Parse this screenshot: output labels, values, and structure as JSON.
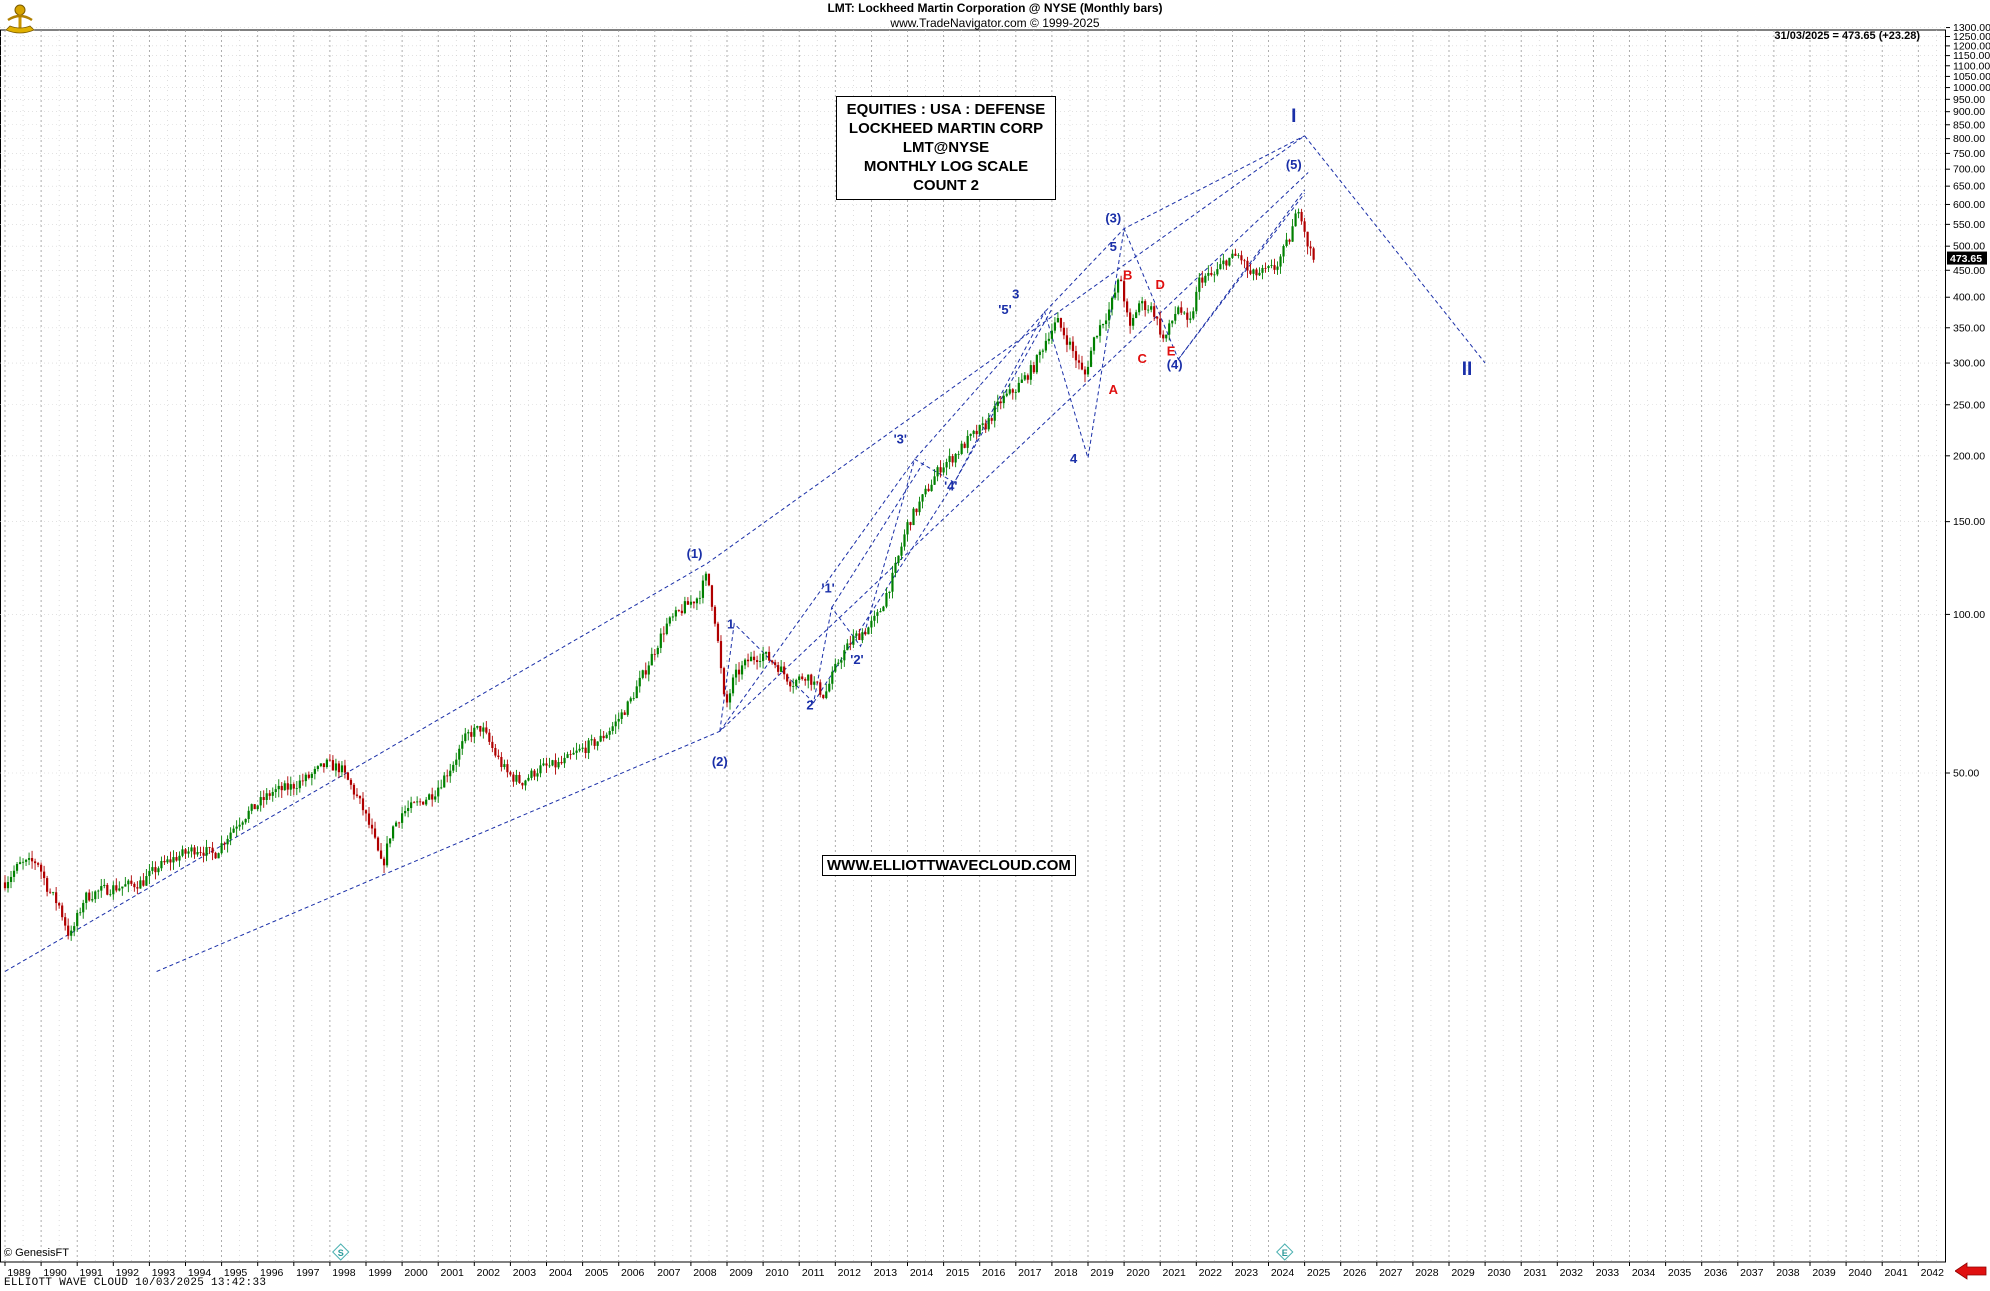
{
  "header": {
    "title": "LMT:  Lockheed Martin Corporation @ NYSE  (Monthly bars)",
    "subtitle": "www.TradeNavigator.com © 1999-2025",
    "last_value": "31/03/2025 = 473.65 (+23.28)",
    "price_tag": "473.65"
  },
  "info_box": {
    "lines": [
      "EQUITIES : USA : DEFENSE",
      "LOCKHEED MARTIN CORP",
      "LMT@NYSE",
      "MONTHLY LOG SCALE",
      "COUNT 2"
    ]
  },
  "website": "WWW.ELLIOTTWAVECLOUD.COM",
  "copyright": "© GenesisFT",
  "footer": "ELLIOTT WAVE CLOUD   10/03/2025 13:42:33",
  "icons": {
    "logo": "trade-navigator-logo-icon",
    "arrow": "left-arrow-icon",
    "cycle_markers": "cycle-marker-icon"
  },
  "colors": {
    "up_candle": "#008000",
    "down_candle": "#b00000",
    "wave_blue": "#1a2fa8",
    "wave_red": "#e01010",
    "grid": "#9a9a9a"
  },
  "chart_data": {
    "type": "candlestick",
    "scale": "log",
    "ylim": [
      22,
      1310
    ],
    "xlim": [
      1989.0,
      2042.4
    ],
    "grid": true,
    "y_ticks": [
      50,
      100,
      150,
      200,
      250,
      300,
      350,
      400,
      450,
      500,
      550,
      600,
      650,
      700,
      750,
      800,
      850,
      900,
      950,
      1000,
      1050,
      1100,
      1150,
      1200,
      1250,
      1300
    ],
    "x_ticks": [
      1989,
      1990,
      1991,
      1992,
      1993,
      1994,
      1995,
      1996,
      1997,
      1998,
      1999,
      2000,
      2001,
      2002,
      2003,
      2004,
      2005,
      2006,
      2007,
      2008,
      2009,
      2010,
      2011,
      2012,
      2013,
      2014,
      2015,
      2016,
      2017,
      2018,
      2019,
      2020,
      2021,
      2022,
      2023,
      2024,
      2025,
      2026,
      2027,
      2028,
      2029,
      2030,
      2031,
      2032,
      2033,
      2034,
      2035,
      2036,
      2037,
      2038,
      2039,
      2040,
      2041,
      2042
    ],
    "price_path": [
      [
        1989.0,
        31
      ],
      [
        1989.4,
        33.5
      ],
      [
        1989.9,
        34
      ],
      [
        1990.2,
        30
      ],
      [
        1990.5,
        28
      ],
      [
        1990.8,
        24.3
      ],
      [
        1991.2,
        29
      ],
      [
        1991.7,
        30
      ],
      [
        1992.3,
        30.5
      ],
      [
        1992.8,
        31
      ],
      [
        1993.2,
        33
      ],
      [
        1993.7,
        34.5
      ],
      [
        1994.3,
        36
      ],
      [
        1994.8,
        35
      ],
      [
        1995.4,
        40
      ],
      [
        1995.9,
        43
      ],
      [
        1996.4,
        46
      ],
      [
        1996.9,
        47
      ],
      [
        1997.4,
        49
      ],
      [
        1997.9,
        52
      ],
      [
        1998.3,
        51
      ],
      [
        1998.6,
        47
      ],
      [
        1998.9,
        43
      ],
      [
        1999.2,
        38
      ],
      [
        1999.45,
        33
      ],
      [
        1999.7,
        39
      ],
      [
        2000.0,
        42
      ],
      [
        2000.5,
        44
      ],
      [
        2000.9,
        46
      ],
      [
        2001.4,
        52
      ],
      [
        2001.8,
        59
      ],
      [
        2002.2,
        61
      ],
      [
        2002.6,
        54
      ],
      [
        2002.9,
        50
      ],
      [
        2003.3,
        48
      ],
      [
        2003.8,
        51
      ],
      [
        2004.4,
        52
      ],
      [
        2004.9,
        55
      ],
      [
        2005.5,
        58
      ],
      [
        2005.9,
        62
      ],
      [
        2006.3,
        68
      ],
      [
        2006.8,
        80
      ],
      [
        2007.3,
        95
      ],
      [
        2007.8,
        103
      ],
      [
        2008.2,
        108
      ],
      [
        2008.45,
        119
      ],
      [
        2008.7,
        95
      ],
      [
        2008.95,
        66
      ],
      [
        2009.2,
        76
      ],
      [
        2009.6,
        82
      ],
      [
        2010.0,
        84
      ],
      [
        2010.4,
        80
      ],
      [
        2010.8,
        74
      ],
      [
        2011.2,
        77
      ],
      [
        2011.7,
        70
      ],
      [
        2012.1,
        82
      ],
      [
        2012.5,
        90
      ],
      [
        2012.9,
        94
      ],
      [
        2013.2,
        100
      ],
      [
        2013.6,
        118
      ],
      [
        2014.0,
        148
      ],
      [
        2014.5,
        170
      ],
      [
        2014.9,
        190
      ],
      [
        2015.3,
        200
      ],
      [
        2015.7,
        215
      ],
      [
        2016.2,
        230
      ],
      [
        2016.6,
        255
      ],
      [
        2017.0,
        268
      ],
      [
        2017.5,
        295
      ],
      [
        2017.9,
        340
      ],
      [
        2018.15,
        360
      ],
      [
        2018.5,
        325
      ],
      [
        2018.9,
        282
      ],
      [
        2019.2,
        340
      ],
      [
        2019.6,
        380
      ],
      [
        2019.9,
        438
      ],
      [
        2020.15,
        345
      ],
      [
        2020.4,
        390
      ],
      [
        2020.8,
        380
      ],
      [
        2021.1,
        330
      ],
      [
        2021.5,
        385
      ],
      [
        2021.8,
        350
      ],
      [
        2022.1,
        435
      ],
      [
        2022.5,
        440
      ],
      [
        2022.8,
        470
      ],
      [
        2023.2,
        480
      ],
      [
        2023.5,
        440
      ],
      [
        2023.8,
        445
      ],
      [
        2024.2,
        455
      ],
      [
        2024.6,
        520
      ],
      [
        2024.85,
        600
      ],
      [
        2025.1,
        500
      ],
      [
        2025.25,
        473.65
      ]
    ],
    "wave_lines": [
      [
        [
          1989.0,
          21.0
        ],
        [
          2008.45,
          125.0
        ],
        [
          2025.0,
          810.0
        ],
        [
          2030.0,
          300.0
        ]
      ],
      [
        [
          1993.2,
          21.0
        ],
        [
          2008.8,
          60.0
        ],
        [
          2025.1,
          690.0
        ]
      ],
      [
        [
          2008.8,
          60.0
        ],
        [
          2009.2,
          96.0
        ],
        [
          2011.4,
          68.0
        ],
        [
          2011.9,
          103.0
        ],
        [
          2012.7,
          87.0
        ],
        [
          2014.2,
          197.0
        ],
        [
          2015.3,
          178.0
        ],
        [
          2017.8,
          375.0
        ],
        [
          2019.0,
          198.0
        ],
        [
          2020.0,
          540.0
        ],
        [
          2021.5,
          305.0
        ],
        [
          2025.0,
          630.0
        ]
      ],
      [
        [
          2008.8,
          60.0
        ],
        [
          2014.2,
          197.0
        ],
        [
          2017.8,
          375.0
        ],
        [
          2020.0,
          540.0
        ],
        [
          2025.0,
          810.0
        ]
      ],
      [
        [
          2011.4,
          68.0
        ],
        [
          2015.3,
          178.0
        ],
        [
          2018.0,
          380.0
        ]
      ],
      [
        [
          2011.9,
          103.0
        ],
        [
          2014.5,
          197.0
        ]
      ],
      [
        [
          2021.5,
          305.0
        ],
        [
          2025.0,
          640.0
        ]
      ]
    ],
    "wave_labels": [
      {
        "text": "(1)",
        "x": 2008.1,
        "y": 128,
        "color": "blue"
      },
      {
        "text": "(2)",
        "x": 2008.8,
        "y": 51.5,
        "color": "blue"
      },
      {
        "text": "1",
        "x": 2009.1,
        "y": 94,
        "color": "blue"
      },
      {
        "text": "2",
        "x": 2011.3,
        "y": 66,
        "color": "blue"
      },
      {
        "text": "'1'",
        "x": 2011.8,
        "y": 110,
        "color": "blue"
      },
      {
        "text": "'2'",
        "x": 2012.6,
        "y": 80.5,
        "color": "blue"
      },
      {
        "text": "'3'",
        "x": 2013.8,
        "y": 211,
        "color": "blue"
      },
      {
        "text": "'4'",
        "x": 2015.2,
        "y": 172,
        "color": "blue"
      },
      {
        "text": "'5'",
        "x": 2016.7,
        "y": 372,
        "color": "blue"
      },
      {
        "text": "3",
        "x": 2017.0,
        "y": 398,
        "color": "blue"
      },
      {
        "text": "4",
        "x": 2018.6,
        "y": 194,
        "color": "blue"
      },
      {
        "text": "5",
        "x": 2019.7,
        "y": 490,
        "color": "blue"
      },
      {
        "text": "(3)",
        "x": 2019.7,
        "y": 555,
        "color": "blue"
      },
      {
        "text": "(4)",
        "x": 2021.4,
        "y": 292,
        "color": "blue"
      },
      {
        "text": "(5)",
        "x": 2024.7,
        "y": 700,
        "color": "blue"
      },
      {
        "text": "I",
        "x": 2024.7,
        "y": 860,
        "color": "blue"
      },
      {
        "text": "II",
        "x": 2029.5,
        "y": 285,
        "color": "blue"
      },
      {
        "text": "A",
        "x": 2019.7,
        "y": 262,
        "color": "red"
      },
      {
        "text": "B",
        "x": 2020.1,
        "y": 432,
        "color": "red"
      },
      {
        "text": "C",
        "x": 2020.5,
        "y": 300,
        "color": "red"
      },
      {
        "text": "D",
        "x": 2021.0,
        "y": 415,
        "color": "red"
      },
      {
        "text": "E",
        "x": 2021.3,
        "y": 310,
        "color": "red"
      }
    ],
    "cycle_markers": [
      {
        "label": "S",
        "x": 1998.3
      },
      {
        "label": "E",
        "x": 2024.45
      }
    ]
  }
}
